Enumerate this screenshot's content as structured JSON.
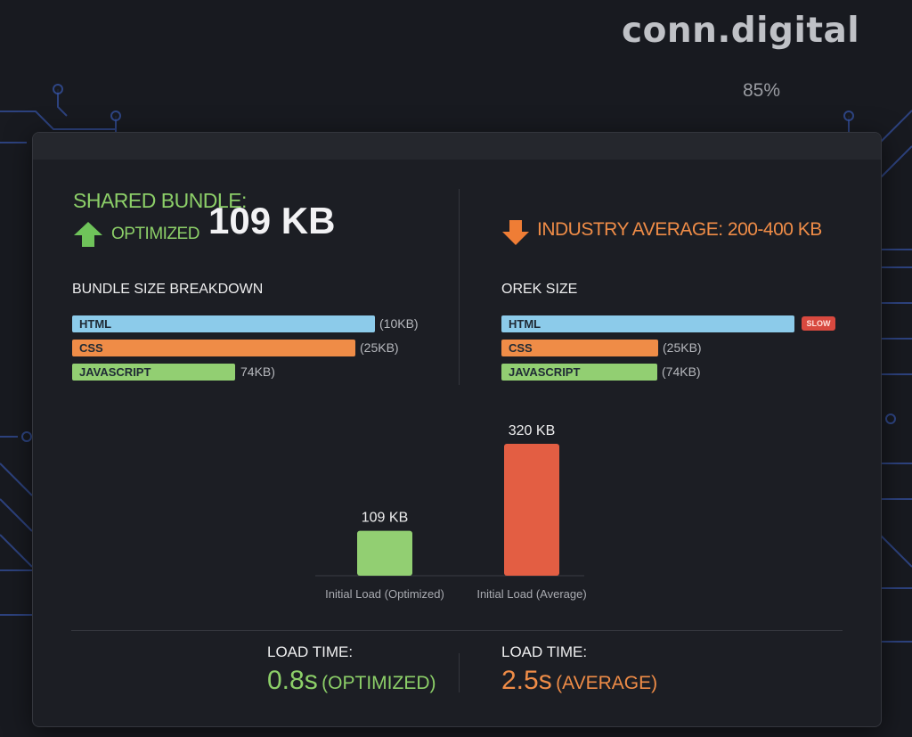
{
  "brand": "conn.digital",
  "zoom_level": "85%",
  "optimized": {
    "label": "SHARED BUNDLE:",
    "tag": "OPTIMIZED",
    "size": "109 KB",
    "breakdown_title": "BUNDLE SIZE BREAKDOWN",
    "bars": [
      {
        "name": "HTML",
        "size_label": "(10KB)",
        "color": "#8ccbea"
      },
      {
        "name": "CSS",
        "size_label": "(25KB)",
        "color": "#ef8c47"
      },
      {
        "name": "JAVASCRIPT",
        "size_label": "74KB)",
        "color": "#92cf72"
      }
    ]
  },
  "industry": {
    "label": "INDUSTRY AVERAGE: 200-400 KB",
    "breakdown_title": "OREK SIZE",
    "slow_badge": "SLOW",
    "bars": [
      {
        "name": "HTML",
        "size_label": "",
        "color": "#8ccbea"
      },
      {
        "name": "CSS",
        "size_label": "(25KB)",
        "color": "#ef8c47"
      },
      {
        "name": "JAVASCRIPT",
        "size_label": "(74KB)",
        "color": "#92cf72"
      }
    ]
  },
  "chart_data": {
    "type": "bar",
    "categories": [
      "Initial Load (Optimized)",
      "Initial Load (Average)"
    ],
    "values": [
      109,
      320
    ],
    "value_labels": [
      "109 KB",
      "320 KB"
    ],
    "colors": [
      "#92cf72",
      "#e35e43"
    ],
    "ylim": [
      0,
      320
    ]
  },
  "load_time": {
    "optimized": {
      "label": "LOAD TIME:",
      "value": "0.8s",
      "qualifier": "(OPTIMIZED)"
    },
    "average": {
      "label": "LOAD TIME:",
      "value": "2.5s",
      "qualifier": "(AVERAGE)"
    }
  },
  "colors": {
    "background": "#181a20",
    "panel": "#1c1e24",
    "accent_green": "#8ccf68",
    "accent_orange": "#ef8c47",
    "alert_red": "#d8493f",
    "circuit_blue": "#3a5db8"
  }
}
